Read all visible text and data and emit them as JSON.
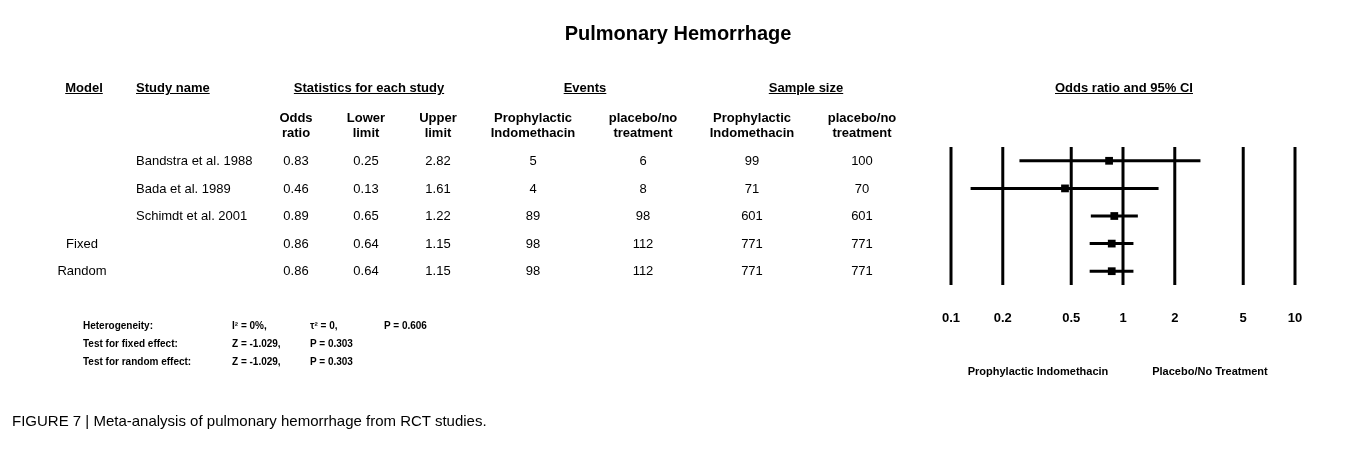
{
  "chart_data": {
    "type": "scatter",
    "title": "Pulmonary Hemorrhage",
    "xlabel": "Odds ratio and 95% CI",
    "categories": [
      null,
      null,
      null,
      null,
      null
    ],
    "orientation": "horizontal",
    "color": "#000000",
    "marker": "square",
    "data_labels": true,
    "values": [
      0.83,
      0.46,
      0.89,
      0.86,
      0.86
    ],
    "errors": [
      [
        0.25,
        2.82
      ],
      [
        0.13,
        1.61
      ],
      [
        0.65,
        1.22
      ],
      [
        0.64,
        1.15
      ],
      [
        0.64,
        1.15
      ]
    ],
    "log": "x",
    "xlim": [
      0.1,
      10
    ],
    "xticks": [
      0.1,
      0.2,
      0.5,
      1,
      2,
      5,
      10
    ],
    "grid": "x",
    "annotations": [
      "Model",
      "Study name",
      "Statistics for each study",
      "Odds ratio",
      "Lower limit",
      "Upper limit",
      "Events",
      "Prophylactic Indomethacin",
      "placebo/no treatment",
      "Sample size",
      "Prophylactic Indomethacin",
      "placebo/no treatment",
      "0.25",
      "2.82",
      "5",
      "6",
      "99",
      "100",
      "0.13",
      "1.61",
      "4",
      "8",
      "71",
      "70",
      "0.65",
      "1.22",
      "89",
      "98",
      "601",
      "601",
      "0.64",
      "1.15",
      "98",
      "112",
      "771",
      "771",
      "0.64",
      "1.15",
      "98",
      "112",
      "771",
      "771",
      "Heterogeneity:",
      "I² = 0%,",
      "τ² = 0,",
      "P = 0.606",
      "Test for fixed effect:",
      "Z = -1.029,",
      "P = 0.303",
      "Test for random effect:",
      "Z = -1.029,",
      "P = 0.303",
      "Prophylactic Indomethacin",
      "Placebo/No Treatment",
      "FIGURE 7 | Meta-analysis of pulmonary hemorrhage from RCT studies.",
      "Fixed",
      "Random",
      "Bandstra et al. 1988",
      "Bada et al. 1989",
      "Schimdt et al. 2001"
    ]
  }
}
